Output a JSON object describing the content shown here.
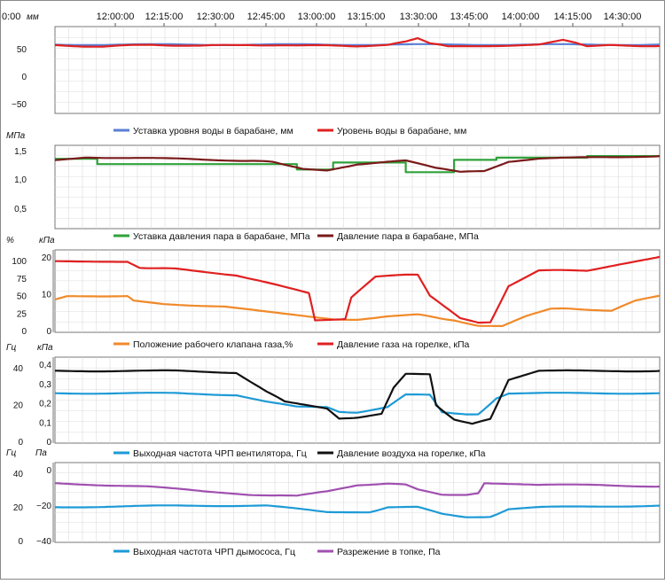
{
  "time_axis": {
    "left_label": "0:00",
    "ticks": [
      "12:00:00",
      "12:15:00",
      "12:30:00",
      "12:45:00",
      "13:00:00",
      "13:15:00",
      "13:30:00",
      "13:45:00",
      "14:00:00",
      "14:15:00",
      "14:30:00"
    ]
  },
  "chart_data": [
    {
      "type": "line",
      "panel": "water-level",
      "left_unit": "мм",
      "left_ticks": [
        "50",
        "0",
        "−50"
      ],
      "ylim": [
        -65,
        65
      ],
      "grid": true,
      "series": [
        {
          "name": "Уставка уровня воды в барабане, мм",
          "color": "#5a7fd6",
          "points": [
            [
              0,
              38
            ],
            [
              1,
              38
            ]
          ]
        },
        {
          "name": "Уровень воды в барабане, мм",
          "color": "#e02020",
          "points": [
            [
              0,
              37
            ],
            [
              0.08,
              35
            ],
            [
              0.16,
              38
            ],
            [
              0.24,
              36
            ],
            [
              0.32,
              38
            ],
            [
              0.4,
              36
            ],
            [
              0.45,
              37
            ],
            [
              0.5,
              36
            ],
            [
              0.55,
              38
            ],
            [
              0.58,
              42
            ],
            [
              0.6,
              47
            ],
            [
              0.62,
              40
            ],
            [
              0.65,
              35
            ],
            [
              0.7,
              36
            ],
            [
              0.75,
              37
            ],
            [
              0.8,
              38
            ],
            [
              0.84,
              46
            ],
            [
              0.86,
              42
            ],
            [
              0.88,
              36
            ],
            [
              0.92,
              37
            ],
            [
              1,
              36
            ]
          ]
        }
      ],
      "legend": "bottom"
    },
    {
      "type": "line",
      "panel": "steam-pressure",
      "left_unit": "МПа",
      "left_ticks": [
        "1,5",
        "1,0",
        "0,5"
      ],
      "ylim": [
        0.1,
        1.65
      ],
      "grid": true,
      "series": [
        {
          "name": "Уставка давления пара в барабане, МПа",
          "color": "#2fa23a",
          "step": true,
          "points": [
            [
              0,
              1.4
            ],
            [
              0.07,
              1.4
            ],
            [
              0.07,
              1.3
            ],
            [
              0.4,
              1.3
            ],
            [
              0.4,
              1.2
            ],
            [
              0.46,
              1.2
            ],
            [
              0.46,
              1.33
            ],
            [
              0.58,
              1.33
            ],
            [
              0.58,
              1.15
            ],
            [
              0.66,
              1.15
            ],
            [
              0.66,
              1.38
            ],
            [
              0.73,
              1.38
            ],
            [
              0.73,
              1.42
            ],
            [
              0.88,
              1.42
            ],
            [
              0.88,
              1.45
            ],
            [
              1,
              1.45
            ]
          ]
        },
        {
          "name": "Давление пара в барабане, МПа",
          "color": "#7a1a1a",
          "points": [
            [
              0,
              1.37
            ],
            [
              0.05,
              1.43
            ],
            [
              0.1,
              1.42
            ],
            [
              0.2,
              1.4
            ],
            [
              0.3,
              1.37
            ],
            [
              0.36,
              1.34
            ],
            [
              0.41,
              1.22
            ],
            [
              0.45,
              1.18
            ],
            [
              0.5,
              1.3
            ],
            [
              0.55,
              1.35
            ],
            [
              0.58,
              1.36
            ],
            [
              0.63,
              1.23
            ],
            [
              0.67,
              1.15
            ],
            [
              0.71,
              1.17
            ],
            [
              0.75,
              1.35
            ],
            [
              0.8,
              1.4
            ],
            [
              0.9,
              1.43
            ],
            [
              1,
              1.45
            ]
          ]
        }
      ],
      "legend": "bottom"
    },
    {
      "type": "line",
      "panel": "gas",
      "left_unit": "%",
      "left_ticks": [
        "100",
        "75",
        "50",
        "25",
        "0"
      ],
      "right_unit": "кПа",
      "right_ticks": [
        "20",
        "10",
        "0"
      ],
      "ylim": [
        -3,
        105
      ],
      "grid": true,
      "series": [
        {
          "name": "Положение рабочего клапана газа,%",
          "color": "#f08a2a",
          "points": [
            [
              0,
              40
            ],
            [
              0.02,
              44
            ],
            [
              0.12,
              45
            ],
            [
              0.13,
              38
            ],
            [
              0.18,
              34
            ],
            [
              0.28,
              31
            ],
            [
              0.35,
              24
            ],
            [
              0.42,
              17
            ],
            [
              0.46,
              14
            ],
            [
              0.5,
              14
            ],
            [
              0.55,
              18
            ],
            [
              0.6,
              20
            ],
            [
              0.66,
              13
            ],
            [
              0.7,
              6
            ],
            [
              0.74,
              5
            ],
            [
              0.78,
              18
            ],
            [
              0.82,
              28
            ],
            [
              0.88,
              27
            ],
            [
              0.92,
              25
            ],
            [
              0.96,
              38
            ],
            [
              1,
              45
            ]
          ]
        },
        {
          "name": "Давление газа на горелке, кПа",
          "color": "#e02020",
          "points": [
            [
              0,
              90
            ],
            [
              0.12,
              90
            ],
            [
              0.14,
              82
            ],
            [
              0.2,
              80
            ],
            [
              0.3,
              72
            ],
            [
              0.38,
              56
            ],
            [
              0.42,
              48
            ],
            [
              0.43,
              13
            ],
            [
              0.48,
              15
            ],
            [
              0.49,
              42
            ],
            [
              0.53,
              70
            ],
            [
              0.58,
              72
            ],
            [
              0.6,
              72
            ],
            [
              0.62,
              45
            ],
            [
              0.67,
              15
            ],
            [
              0.7,
              10
            ],
            [
              0.72,
              10
            ],
            [
              0.75,
              58
            ],
            [
              0.8,
              78
            ],
            [
              0.88,
              78
            ],
            [
              0.93,
              86
            ],
            [
              1,
              96
            ]
          ]
        }
      ],
      "legend": "bottom"
    },
    {
      "type": "line",
      "panel": "air",
      "left_unit": "Гц",
      "left_ticks": [
        "40",
        "20",
        "0"
      ],
      "right_unit": "кПа",
      "right_ticks": [
        "0,4",
        "0,3",
        "0,2",
        "0,1",
        "0"
      ],
      "ylim": [
        -2,
        48
      ],
      "grid": true,
      "series": [
        {
          "name": "Выходная частота ЧРП вентилятора, Гц",
          "color": "#1e9ad6",
          "points": [
            [
              0,
              27
            ],
            [
              0.2,
              27
            ],
            [
              0.3,
              26
            ],
            [
              0.35,
              22
            ],
            [
              0.4,
              19
            ],
            [
              0.45,
              19
            ],
            [
              0.47,
              16
            ],
            [
              0.5,
              16
            ],
            [
              0.55,
              19
            ],
            [
              0.58,
              26
            ],
            [
              0.62,
              26
            ],
            [
              0.64,
              16
            ],
            [
              0.68,
              15
            ],
            [
              0.7,
              15
            ],
            [
              0.73,
              24
            ],
            [
              0.75,
              27
            ],
            [
              0.85,
              27
            ],
            [
              1,
              27
            ]
          ]
        },
        {
          "name": "Давление воздуха на горелке, кПа",
          "color": "#111111",
          "points": [
            [
              0,
              40
            ],
            [
              0.2,
              40
            ],
            [
              0.3,
              39
            ],
            [
              0.35,
              28
            ],
            [
              0.38,
              22
            ],
            [
              0.45,
              18
            ],
            [
              0.47,
              12
            ],
            [
              0.5,
              13
            ],
            [
              0.54,
              15
            ],
            [
              0.56,
              30
            ],
            [
              0.58,
              38
            ],
            [
              0.62,
              38
            ],
            [
              0.63,
              20
            ],
            [
              0.66,
              12
            ],
            [
              0.69,
              9
            ],
            [
              0.72,
              12
            ],
            [
              0.75,
              35
            ],
            [
              0.8,
              40
            ],
            [
              1,
              40
            ]
          ]
        }
      ],
      "legend": "bottom"
    },
    {
      "type": "line",
      "panel": "exhaust",
      "left_unit": "Гц",
      "left_ticks": [
        "40",
        "20",
        "0"
      ],
      "right_unit": "Па",
      "right_ticks": [
        "0",
        "−20",
        "−40"
      ],
      "ylim": [
        -2,
        48
      ],
      "grid": true,
      "series": [
        {
          "name": "Выходная частота ЧРП дымососа, Гц",
          "color": "#1e9ad6",
          "points": [
            [
              0,
              20
            ],
            [
              0.2,
              21
            ],
            [
              0.35,
              21
            ],
            [
              0.45,
              17
            ],
            [
              0.52,
              17
            ],
            [
              0.55,
              20
            ],
            [
              0.6,
              20
            ],
            [
              0.64,
              16
            ],
            [
              0.68,
              14
            ],
            [
              0.72,
              14
            ],
            [
              0.75,
              19
            ],
            [
              0.8,
              20
            ],
            [
              1,
              21
            ]
          ]
        },
        {
          "name": "Разрежение в топке, Па",
          "color": "#a050b0",
          "points": [
            [
              0,
              35
            ],
            [
              0.15,
              33
            ],
            [
              0.25,
              30
            ],
            [
              0.32,
              28
            ],
            [
              0.4,
              27
            ],
            [
              0.45,
              30
            ],
            [
              0.5,
              34
            ],
            [
              0.55,
              35
            ],
            [
              0.58,
              34
            ],
            [
              0.6,
              31
            ],
            [
              0.64,
              28
            ],
            [
              0.68,
              28
            ],
            [
              0.7,
              29
            ],
            [
              0.71,
              35
            ],
            [
              0.8,
              34
            ],
            [
              0.9,
              34
            ],
            [
              1,
              33
            ]
          ]
        }
      ],
      "legend": "bottom"
    }
  ]
}
